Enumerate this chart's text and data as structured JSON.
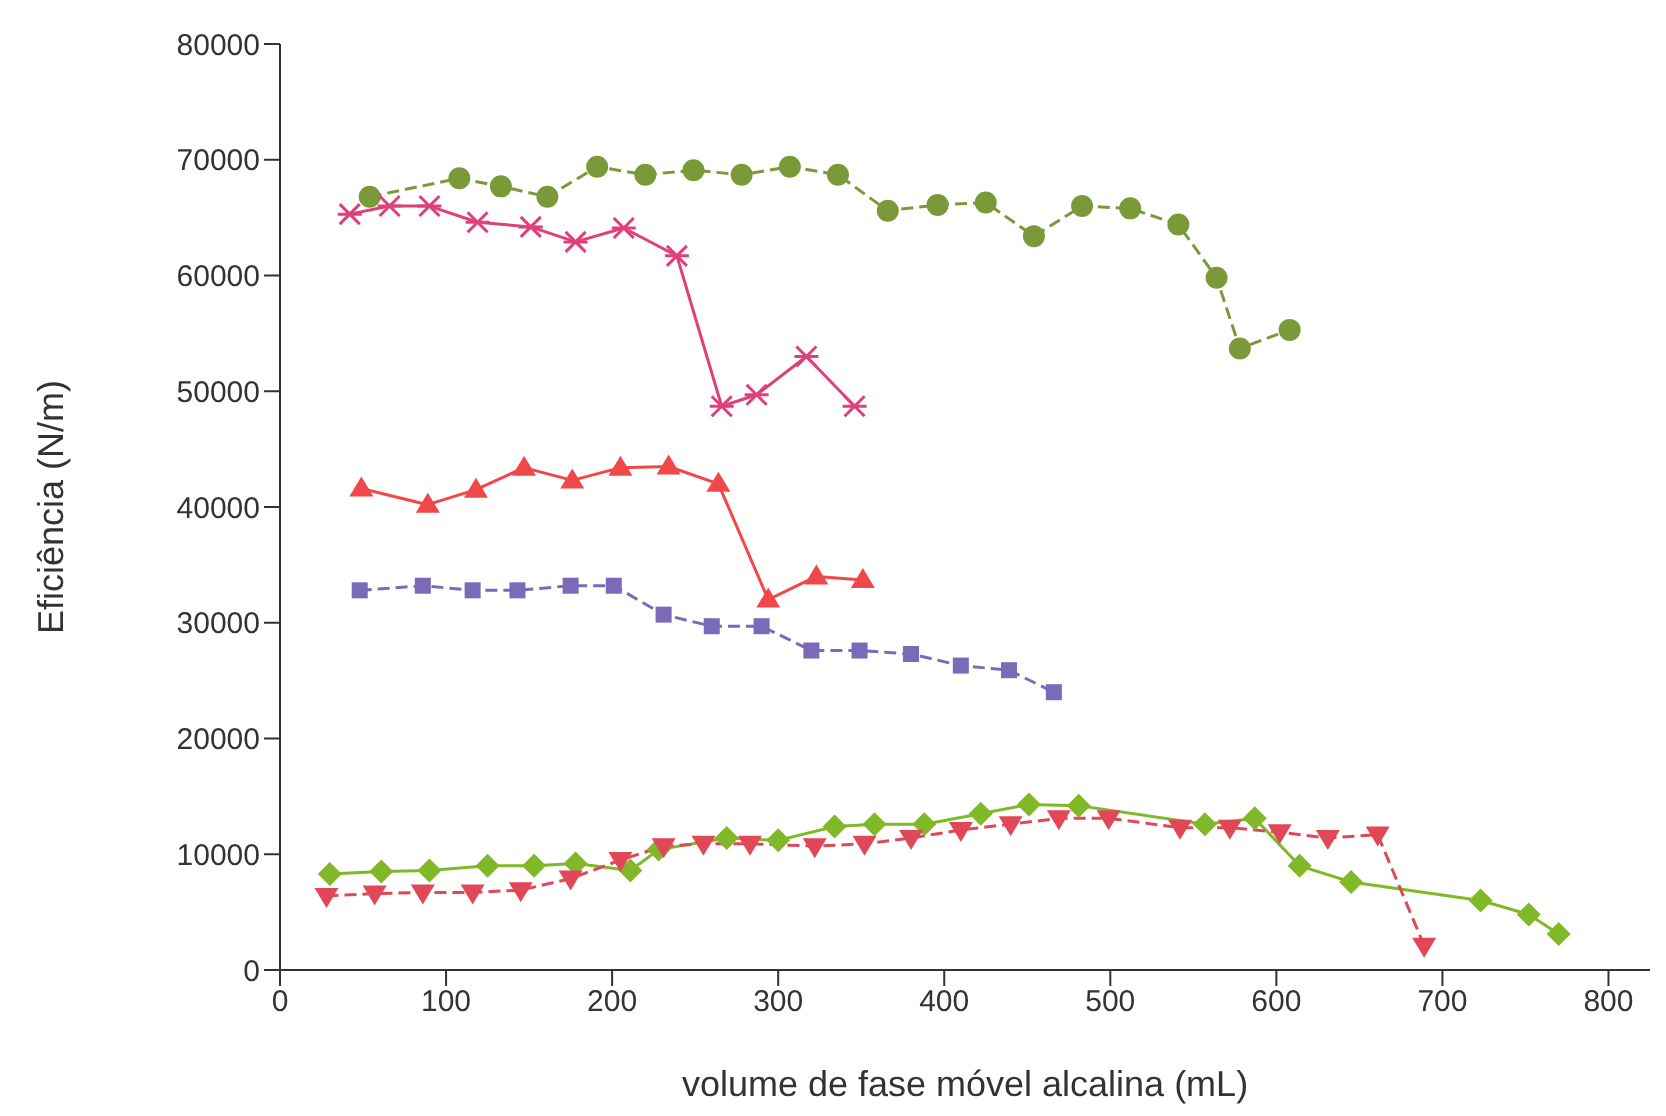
{
  "chart_data": {
    "type": "line",
    "xlabel": "volume de fase móvel alcalina (mL)",
    "ylabel": "Eficiência (N/m)",
    "xlim": [
      0,
      825
    ],
    "xticks": [
      0,
      100,
      200,
      300,
      400,
      500,
      600,
      700,
      800
    ],
    "ylim": [
      0,
      80000
    ],
    "yticks": [
      0,
      10000,
      20000,
      30000,
      40000,
      50000,
      60000,
      70000,
      80000
    ],
    "grid": false,
    "series": [
      {
        "color": "#7a9a3a",
        "marker": "circle",
        "line_style": "dashed",
        "x": [
          54,
          108,
          133,
          161,
          191,
          220,
          249,
          278,
          307,
          336,
          366,
          396,
          425,
          454,
          483,
          512,
          541,
          564,
          578,
          608
        ],
        "values": [
          66800,
          68400,
          67700,
          66800,
          69400,
          68700,
          69100,
          68700,
          69400,
          68700,
          65600,
          66100,
          66300,
          63400,
          66000,
          65800,
          64400,
          59800,
          53700,
          55300
        ]
      },
      {
        "color": "#e0407a",
        "marker": "cross",
        "line_style": "solid",
        "x": [
          42,
          66,
          90,
          119,
          151,
          178,
          207,
          239,
          266,
          287,
          317,
          346
        ],
        "values": [
          65300,
          66000,
          66000,
          64600,
          64200,
          62900,
          64100,
          61700,
          48700,
          49700,
          53000,
          48700
        ]
      },
      {
        "color": "#f04848",
        "marker": "triangle",
        "line_style": "solid",
        "x": [
          49,
          89,
          118,
          147,
          176,
          205,
          234,
          264,
          294,
          323,
          351
        ],
        "values": [
          41600,
          40200,
          41500,
          43400,
          42300,
          43400,
          43500,
          42000,
          32000,
          34000,
          33700
        ]
      },
      {
        "color": "#7a6ab8",
        "marker": "square",
        "line_style": "dashed",
        "x": [
          48,
          86,
          116,
          143,
          175,
          201,
          231,
          260,
          290,
          320,
          349,
          380,
          410,
          439,
          466
        ],
        "values": [
          32800,
          33200,
          32800,
          32800,
          33200,
          33200,
          30700,
          29700,
          29700,
          27600,
          27600,
          27300,
          26300,
          25900,
          24000
        ]
      },
      {
        "color": "#80b828",
        "marker": "diamond",
        "line_style": "solid",
        "x": [
          30,
          61,
          90,
          125,
          153,
          178,
          211,
          228,
          269,
          300,
          334,
          358,
          388,
          422,
          451,
          481,
          557,
          587,
          614,
          645,
          723,
          752,
          770
        ],
        "values": [
          8300,
          8500,
          8600,
          9000,
          9000,
          9200,
          8600,
          10400,
          11400,
          11200,
          12400,
          12600,
          12600,
          13500,
          14300,
          14200,
          12600,
          13100,
          9000,
          7600,
          6000,
          4800,
          3100
        ]
      },
      {
        "color": "#e04858",
        "marker": "triangle-down",
        "line_style": "dashed",
        "x": [
          28,
          57,
          86,
          116,
          145,
          175,
          205,
          231,
          255,
          283,
          322,
          352,
          380,
          410,
          440,
          469,
          499,
          542,
          572,
          602,
          631,
          661,
          689
        ],
        "values": [
          6400,
          6600,
          6700,
          6700,
          6900,
          7900,
          9500,
          10700,
          10900,
          10900,
          10700,
          10900,
          11400,
          12100,
          12600,
          13100,
          13100,
          12300,
          12300,
          11900,
          11400,
          11700,
          2100
        ]
      }
    ]
  }
}
